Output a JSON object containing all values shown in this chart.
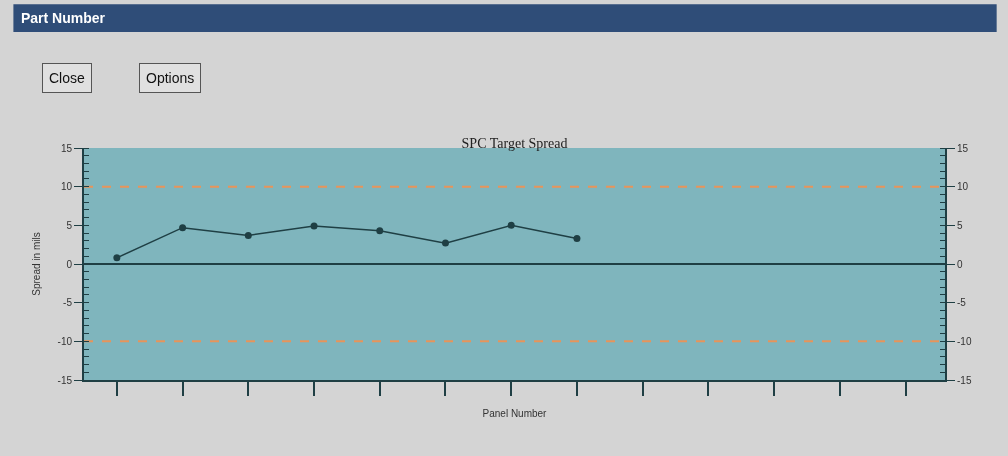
{
  "chart_data": {
    "type": "line",
    "title": "SPC Target Spread",
    "xlabel": "Panel Number",
    "ylabel": "Spread in mils",
    "annotations": [
      "Part Number",
      "Close",
      "Options"
    ],
    "categories": [
      null,
      null,
      null,
      null,
      null,
      null,
      null,
      null,
      null,
      null,
      null,
      null,
      null
    ],
    "series": [
      {
        "color": "#1f3f44",
        "values": [
          0.8,
          4.7,
          3.7,
          4.9,
          4.3,
          2.7,
          5.0,
          3.3,
          null,
          null,
          null,
          null,
          null
        ]
      }
    ],
    "ylim": [
      -15,
      15
    ],
    "yticks": [
      -15,
      -10,
      -5,
      0,
      5,
      10,
      15
    ],
    "y2lim": [
      -15,
      15
    ],
    "y2ticks": [
      -15,
      -10,
      -5,
      0,
      5,
      10,
      15
    ],
    "ref_lines": [
      {
        "axis": "y",
        "value": 10,
        "color": "#e8945a",
        "line_style": "dashed"
      },
      {
        "axis": "y",
        "value": -10,
        "color": "#e8945a",
        "line_style": "dashed"
      },
      {
        "axis": "y",
        "value": 0,
        "color": "#1f3f44",
        "line_style": "solid"
      }
    ],
    "marker": "circle",
    "line_style": "solid",
    "grid": false,
    "tick_labels": "y"
  }
}
